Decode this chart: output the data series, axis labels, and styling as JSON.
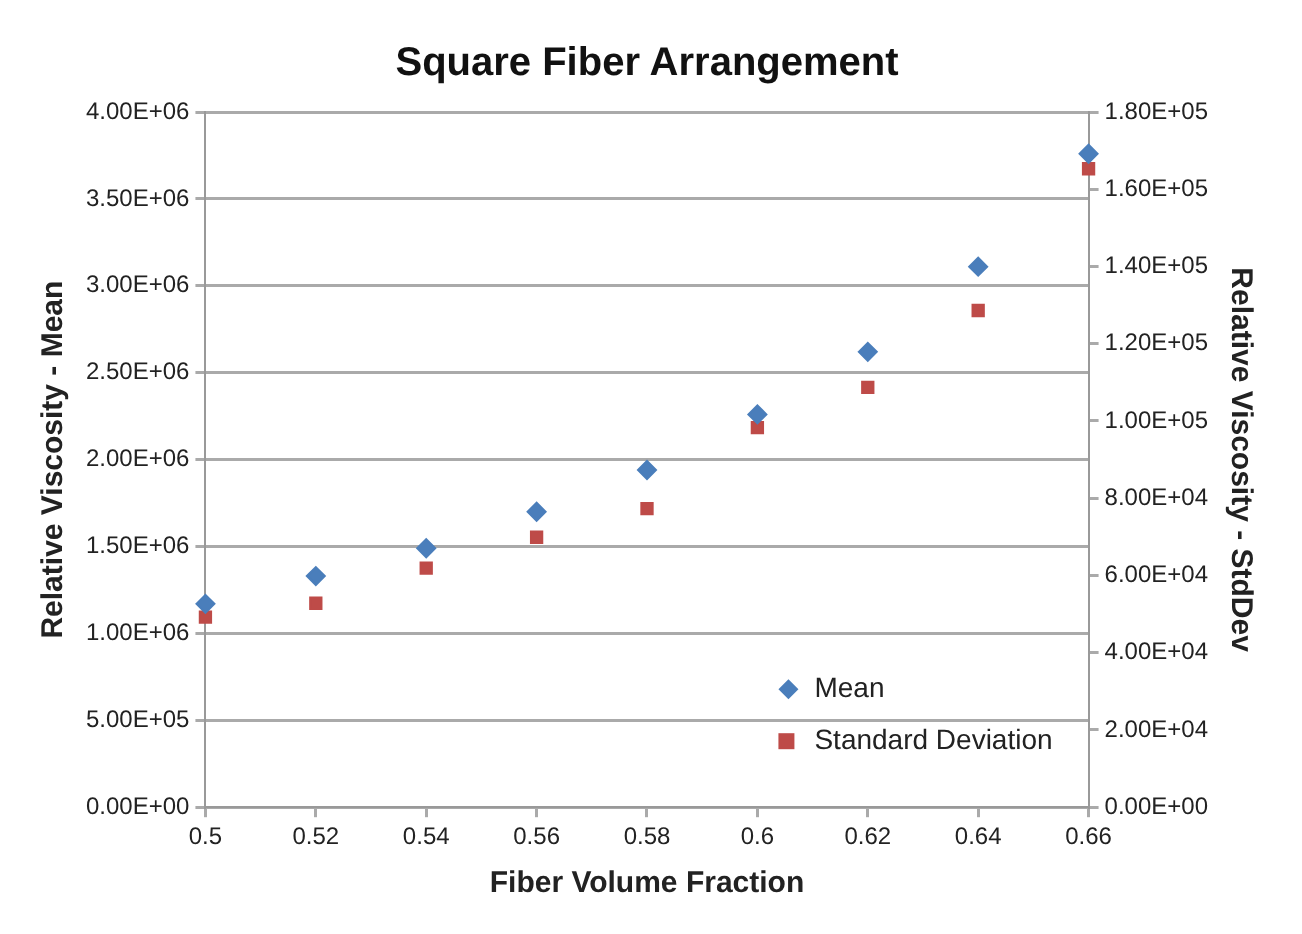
{
  "chart_data": {
    "type": "scatter",
    "title": "Square Fiber Arrangement",
    "xlabel": "Fiber Volume Fraction",
    "ylabel": "Relative Viscosity - Mean",
    "y2label": "Relative Viscosity - StdDev",
    "x": [
      0.5,
      0.52,
      0.54,
      0.56,
      0.58,
      0.6,
      0.62,
      0.64,
      0.66
    ],
    "series": [
      {
        "name": "Mean",
        "color": "#4a7ebb",
        "marker": "diamond",
        "values": [
          1170000,
          1330000,
          1490000,
          1700000,
          1940000,
          2260000,
          2620000,
          3110000,
          3760000
        ]
      },
      {
        "name": "Standard Deviation",
        "color": "#be4b48",
        "marker": "square",
        "axis": "y2",
        "values": [
          49200,
          52800,
          61900,
          69900,
          77300,
          98300,
          108700,
          128600,
          165300
        ]
      }
    ],
    "xlim": [
      0.5,
      0.66
    ],
    "xticks": [
      0.5,
      0.52,
      0.54,
      0.56,
      0.58,
      0.6,
      0.62,
      0.64,
      0.66
    ],
    "ylim": [
      0,
      4000000
    ],
    "yticks": [
      {
        "value": 0,
        "label": "0.00E+00"
      },
      {
        "value": 500000,
        "label": "5.00E+05"
      },
      {
        "value": 1000000,
        "label": "1.00E+06"
      },
      {
        "value": 1500000,
        "label": "1.50E+06"
      },
      {
        "value": 2000000,
        "label": "2.00E+06"
      },
      {
        "value": 2500000,
        "label": "2.50E+06"
      },
      {
        "value": 3000000,
        "label": "3.00E+06"
      },
      {
        "value": 3500000,
        "label": "3.50E+06"
      },
      {
        "value": 4000000,
        "label": "4.00E+06"
      }
    ],
    "y2lim": [
      0,
      180000
    ],
    "y2ticks": [
      {
        "value": 0,
        "label": "0.00E+00"
      },
      {
        "value": 20000,
        "label": "2.00E+04"
      },
      {
        "value": 40000,
        "label": "4.00E+04"
      },
      {
        "value": 60000,
        "label": "6.00E+04"
      },
      {
        "value": 80000,
        "label": "8.00E+04"
      },
      {
        "value": 100000,
        "label": "1.00E+05"
      },
      {
        "value": 120000,
        "label": "1.20E+05"
      },
      {
        "value": 140000,
        "label": "1.40E+05"
      },
      {
        "value": 160000,
        "label": "1.60E+05"
      },
      {
        "value": 180000,
        "label": "1.80E+05"
      }
    ],
    "grid": "y",
    "legend": "bottom right"
  }
}
